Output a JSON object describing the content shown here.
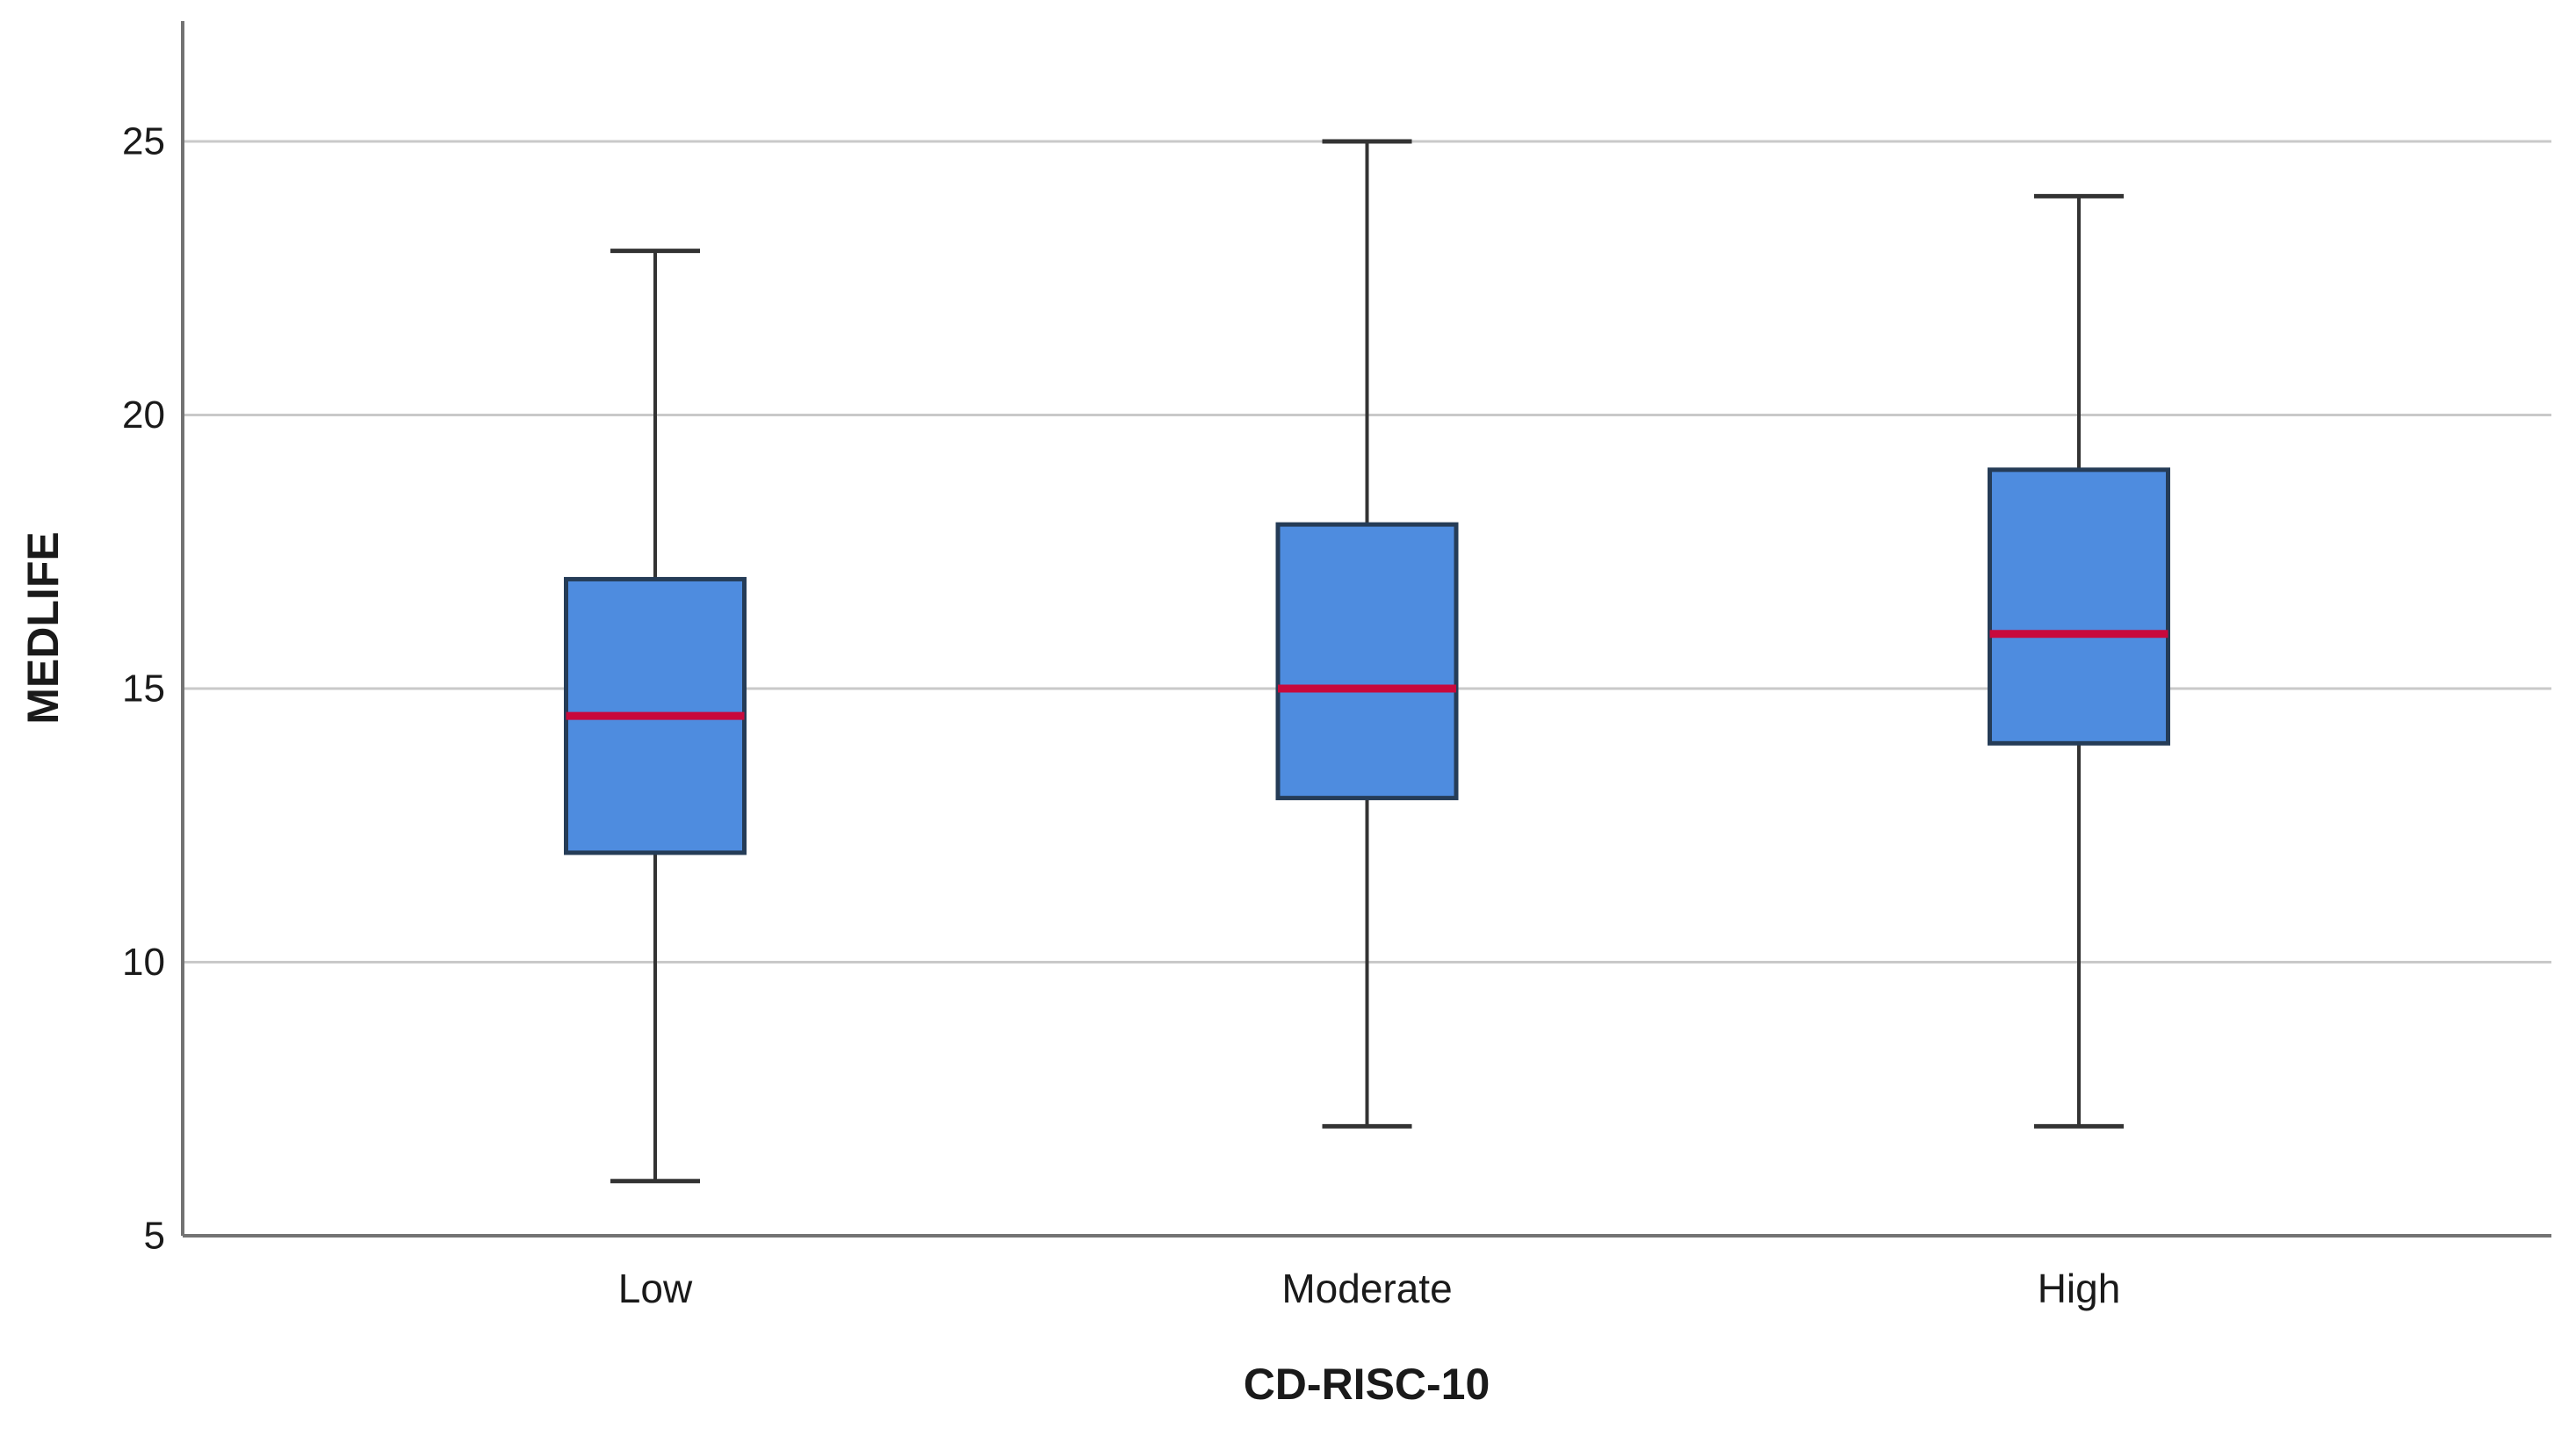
{
  "chart_data": {
    "type": "boxplot",
    "title": "",
    "xlabel": "CD-RISC-10",
    "ylabel": "MEDLIFE",
    "categories": [
      "Low",
      "Moderate",
      "High"
    ],
    "y_ticks": [
      5,
      10,
      15,
      20,
      25
    ],
    "ylim": [
      5,
      27.2
    ],
    "grid": "horizontal",
    "legend": "none",
    "series": [
      {
        "category": "Low",
        "min": 6,
        "q1": 12,
        "median": 14.5,
        "q3": 17,
        "max": 23
      },
      {
        "category": "Moderate",
        "min": 7,
        "q1": 13,
        "median": 15,
        "q3": 18,
        "max": 25
      },
      {
        "category": "High",
        "min": 7,
        "q1": 14,
        "median": 16,
        "q3": 19,
        "max": 24
      }
    ],
    "colors": {
      "box_fill": "#4E8CDF",
      "box_border": "#253C57",
      "median_line": "#C8093C",
      "whisker": "#333333",
      "gridline": "#C9C9C9",
      "axis_line": "#737373",
      "text": "#1A1A1A",
      "background": "#FFFFFF"
    }
  }
}
